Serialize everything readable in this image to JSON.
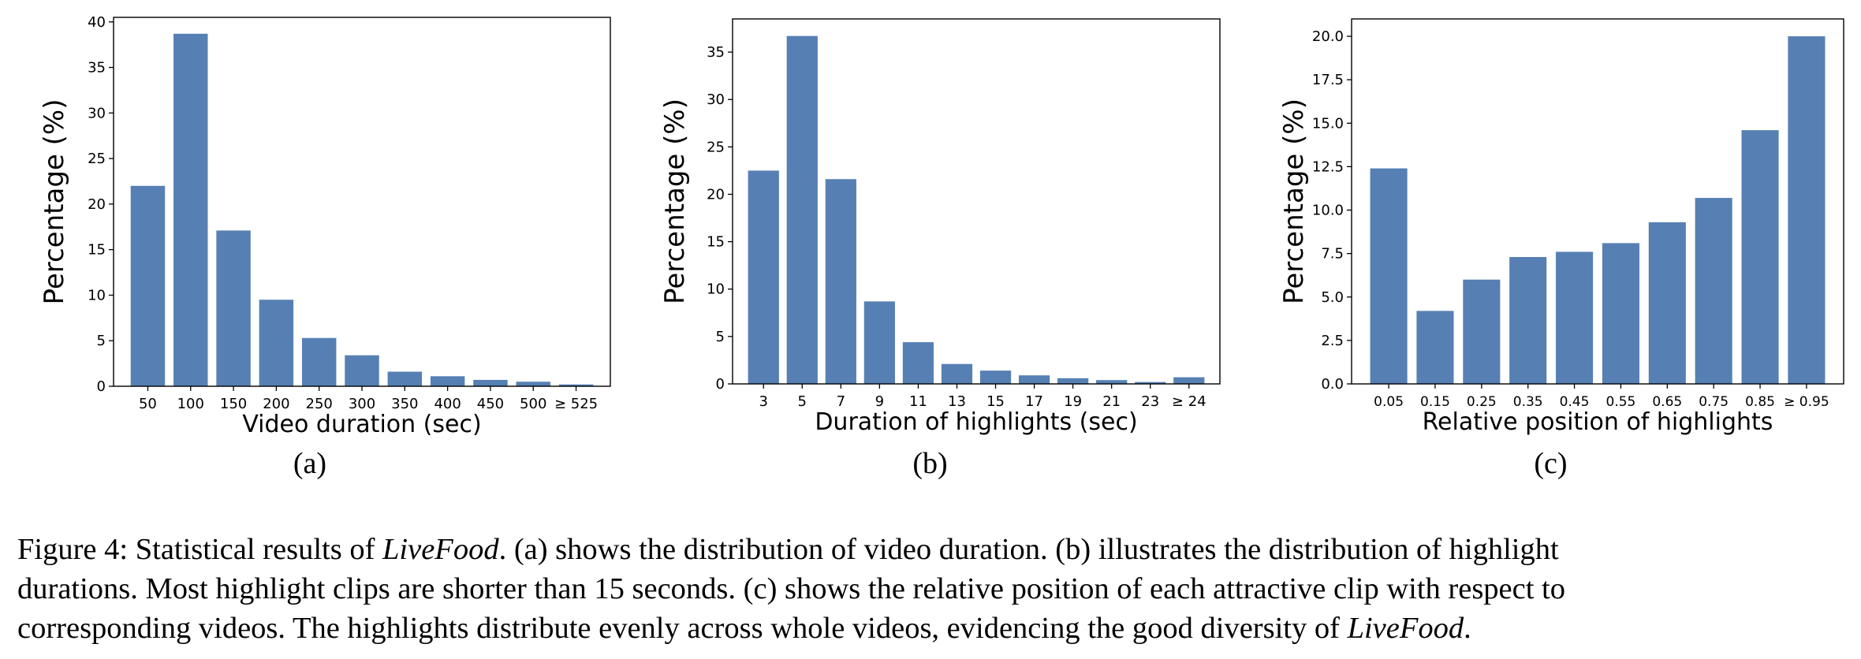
{
  "bar_color": "#5680b4",
  "chart_data": [
    {
      "type": "bar",
      "sublabel": "(a)",
      "title": "",
      "xlabel": "Video duration (sec)",
      "ylabel": "Percentage (%)",
      "categories": [
        "50",
        "100",
        "150",
        "200",
        "250",
        "300",
        "350",
        "400",
        "450",
        "500",
        "≥ 525"
      ],
      "values": [
        22.0,
        38.7,
        17.1,
        9.5,
        5.3,
        3.4,
        1.6,
        1.1,
        0.7,
        0.5,
        0.2
      ],
      "ylim": [
        0,
        40.5
      ],
      "yticks": [
        "0",
        "5",
        "10",
        "15",
        "20",
        "25",
        "30",
        "35",
        "40"
      ],
      "ytick_values": [
        0,
        5,
        10,
        15,
        20,
        25,
        30,
        35,
        40
      ],
      "grid": false
    },
    {
      "type": "bar",
      "sublabel": "(b)",
      "title": "",
      "xlabel": "Duration of highlights (sec)",
      "ylabel": "Percentage (%)",
      "categories": [
        "3",
        "5",
        "7",
        "9",
        "11",
        "13",
        "15",
        "17",
        "19",
        "21",
        "23",
        "≥ 24"
      ],
      "values": [
        22.5,
        36.7,
        21.6,
        8.7,
        4.4,
        2.1,
        1.4,
        0.9,
        0.6,
        0.4,
        0.2,
        0.7
      ],
      "ylim": [
        0,
        38.5
      ],
      "yticks": [
        "0",
        "5",
        "10",
        "15",
        "20",
        "25",
        "30",
        "35"
      ],
      "ytick_values": [
        0,
        5,
        10,
        15,
        20,
        25,
        30,
        35
      ],
      "grid": false
    },
    {
      "type": "bar",
      "sublabel": "(c)",
      "title": "",
      "xlabel": "Relative position of highlights",
      "ylabel": "Percentage (%)",
      "categories": [
        "0.05",
        "0.15",
        "0.25",
        "0.35",
        "0.45",
        "0.55",
        "0.65",
        "0.75",
        "0.85",
        "≥ 0.95"
      ],
      "values": [
        12.4,
        4.2,
        6.0,
        7.3,
        7.6,
        8.1,
        9.3,
        10.7,
        14.6,
        20.0
      ],
      "ylim": [
        0,
        21.0
      ],
      "yticks": [
        "0.0",
        "2.5",
        "5.0",
        "7.5",
        "10.0",
        "12.5",
        "15.0",
        "17.5",
        "20.0"
      ],
      "ytick_values": [
        0,
        2.5,
        5,
        7.5,
        10,
        12.5,
        15,
        17.5,
        20
      ],
      "grid": false
    }
  ],
  "caption": {
    "line1_a": "Figure 4: Statistical results of ",
    "line1_b": "LiveFood",
    "line1_c": ". (a) shows the distribution of video duration. (b) illustrates the distribution of highlight",
    "line2": "durations. Most highlight clips are shorter than 15 seconds. (c) shows the relative position of each attractive clip with respect to",
    "line3_a": "corresponding videos. The highlights distribute evenly across whole videos, evidencing the good diversity of ",
    "line3_b": "LiveFood",
    "line3_c": "."
  }
}
